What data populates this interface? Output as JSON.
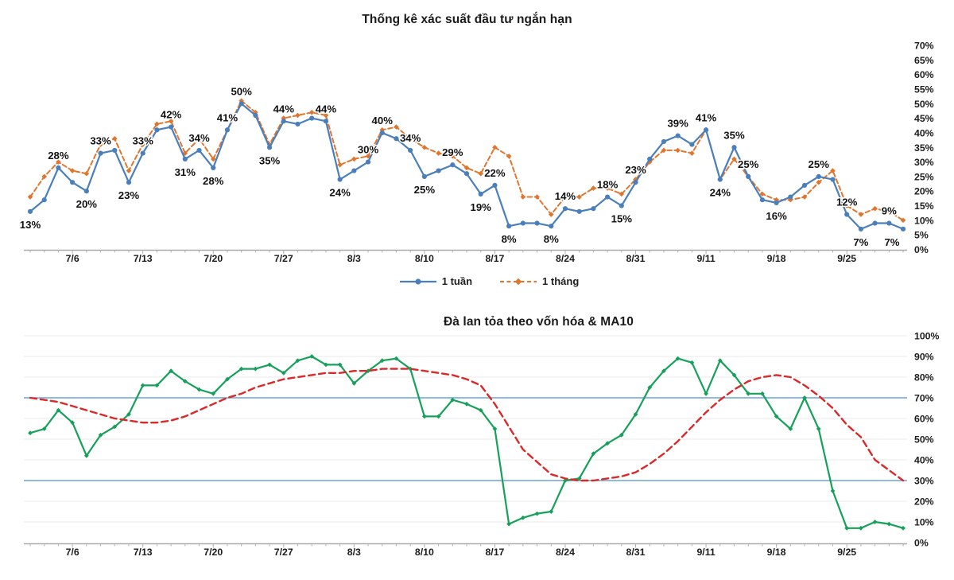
{
  "page_title": "Thống kê xác suất đầu tư ngắn hạn",
  "colors": {
    "week_line": "#4a7fbc",
    "month_line": "#e1752e",
    "breadth_line": "#16a05a",
    "ma10_line": "#d92929",
    "reference_line": "#7fb2d9",
    "grid_line": "#e9e9e9",
    "axis_line": "#a9a9a9",
    "text": "#1c1c1c"
  },
  "chart_data": [
    {
      "type": "line",
      "title": "Thống kê xác suất đầu tư ngắn hạn",
      "ylabel": "",
      "xlabel": "",
      "ylim": [
        0,
        70
      ],
      "y_step": 5,
      "y_tick_labels": [
        "70%",
        "65%",
        "60%",
        "55%",
        "50%",
        "45%",
        "40%",
        "35%",
        "30%",
        "25%",
        "20%",
        "15%",
        "10%",
        "5%",
        "0%"
      ],
      "y_axis_side": "right",
      "grid": false,
      "legend_position": "bottom",
      "x_tick_labels": [
        "7/6",
        "7/13",
        "7/20",
        "7/27",
        "8/3",
        "8/10",
        "8/17",
        "8/24",
        "8/31",
        "9/11",
        "9/18",
        "9/25"
      ],
      "x_tick_indices": [
        3,
        8,
        13,
        18,
        23,
        28,
        33,
        38,
        43,
        48,
        53,
        58
      ],
      "n_points": 63,
      "series": [
        {
          "name": "1 tuần",
          "color": "#4a7fbc",
          "line_style": "solid",
          "marker": "circle",
          "values": [
            13,
            17,
            28,
            23,
            20,
            33,
            34,
            23,
            33,
            41,
            42,
            31,
            34,
            28,
            41,
            50,
            46,
            35,
            44,
            43,
            45,
            44,
            24,
            27,
            30,
            40,
            38,
            34,
            25,
            27,
            29,
            26,
            19,
            22,
            8,
            9,
            9,
            8,
            14,
            13,
            14,
            18,
            15,
            23,
            31,
            37,
            39,
            36,
            41,
            24,
            35,
            25,
            17,
            16,
            18,
            22,
            25,
            24,
            12,
            7,
            9,
            9,
            7
          ]
        },
        {
          "name": "1 tháng",
          "color": "#e1752e",
          "line_style": "dashed",
          "marker": "diamond",
          "values": [
            18,
            25,
            30,
            27,
            26,
            36,
            38,
            27,
            36,
            43,
            44,
            33,
            38,
            31,
            41,
            51,
            47,
            36,
            45,
            46,
            47,
            46,
            29,
            31,
            32,
            41,
            42,
            38,
            35,
            33,
            32,
            28,
            26,
            35,
            32,
            18,
            18,
            12,
            18,
            18,
            21,
            21,
            19,
            24,
            30,
            34,
            34,
            33,
            41,
            24,
            31,
            25,
            19,
            17,
            17,
            18,
            23,
            27,
            15,
            12,
            14,
            13,
            10
          ]
        }
      ],
      "data_labels": {
        "series": "1 tuần",
        "color": "#111111",
        "items": [
          {
            "index": 0,
            "text": "13%",
            "pos": "below"
          },
          {
            "index": 2,
            "text": "28%",
            "pos": "above"
          },
          {
            "index": 4,
            "text": "20%",
            "pos": "below"
          },
          {
            "index": 5,
            "text": "33%",
            "pos": "above"
          },
          {
            "index": 7,
            "text": "23%",
            "pos": "below"
          },
          {
            "index": 8,
            "text": "33%",
            "pos": "above"
          },
          {
            "index": 10,
            "text": "42%",
            "pos": "above"
          },
          {
            "index": 11,
            "text": "31%",
            "pos": "below"
          },
          {
            "index": 12,
            "text": "34%",
            "pos": "above"
          },
          {
            "index": 13,
            "text": "28%",
            "pos": "below"
          },
          {
            "index": 14,
            "text": "41%",
            "pos": "above"
          },
          {
            "index": 15,
            "text": "50%",
            "pos": "above"
          },
          {
            "index": 17,
            "text": "35%",
            "pos": "below"
          },
          {
            "index": 18,
            "text": "44%",
            "pos": "above"
          },
          {
            "index": 21,
            "text": "44%",
            "pos": "above"
          },
          {
            "index": 22,
            "text": "24%",
            "pos": "below"
          },
          {
            "index": 24,
            "text": "30%",
            "pos": "above"
          },
          {
            "index": 25,
            "text": "40%",
            "pos": "above"
          },
          {
            "index": 27,
            "text": "34%",
            "pos": "above"
          },
          {
            "index": 28,
            "text": "25%",
            "pos": "below"
          },
          {
            "index": 30,
            "text": "29%",
            "pos": "above"
          },
          {
            "index": 32,
            "text": "19%",
            "pos": "below"
          },
          {
            "index": 33,
            "text": "22%",
            "pos": "above"
          },
          {
            "index": 34,
            "text": "8%",
            "pos": "below"
          },
          {
            "index": 37,
            "text": "8%",
            "pos": "below"
          },
          {
            "index": 38,
            "text": "14%",
            "pos": "above"
          },
          {
            "index": 41,
            "text": "18%",
            "pos": "above"
          },
          {
            "index": 42,
            "text": "15%",
            "pos": "below"
          },
          {
            "index": 43,
            "text": "23%",
            "pos": "above"
          },
          {
            "index": 46,
            "text": "39%",
            "pos": "above"
          },
          {
            "index": 48,
            "text": "41%",
            "pos": "above"
          },
          {
            "index": 49,
            "text": "24%",
            "pos": "below"
          },
          {
            "index": 50,
            "text": "35%",
            "pos": "above"
          },
          {
            "index": 51,
            "text": "25%",
            "pos": "above"
          },
          {
            "index": 53,
            "text": "16%",
            "pos": "below"
          },
          {
            "index": 56,
            "text": "25%",
            "pos": "above"
          },
          {
            "index": 58,
            "text": "12%",
            "pos": "above"
          },
          {
            "index": 59,
            "text": "7%",
            "pos": "below"
          },
          {
            "index": 61,
            "text": "9%",
            "pos": "above"
          },
          {
            "index": 62,
            "text": "7%",
            "pos": "below"
          }
        ]
      }
    },
    {
      "type": "line",
      "title": "Đà lan tỏa theo vốn hóa & MA10",
      "ylabel": "",
      "xlabel": "",
      "ylim": [
        0,
        100
      ],
      "y_step": 10,
      "y_tick_labels": [
        "100%",
        "90%",
        "80%",
        "70%",
        "60%",
        "50%",
        "40%",
        "30%",
        "20%",
        "10%",
        "0%"
      ],
      "y_axis_side": "right",
      "grid": true,
      "legend_position": "none",
      "reference_lines": [
        {
          "value": 70,
          "color": "#7fb2d9"
        },
        {
          "value": 30,
          "color": "#7fb2d9"
        }
      ],
      "x_tick_labels": [
        "7/6",
        "7/13",
        "7/20",
        "7/27",
        "8/3",
        "8/10",
        "8/17",
        "8/24",
        "8/31",
        "9/11",
        "9/18",
        "9/25"
      ],
      "x_tick_indices": [
        3,
        8,
        13,
        18,
        23,
        28,
        33,
        38,
        43,
        48,
        53,
        58
      ],
      "n_points": 63,
      "series": [
        {
          "name": "Đà lan tỏa theo vốn hóa",
          "color": "#16a05a",
          "line_style": "solid",
          "marker": "diamond",
          "values": [
            53,
            55,
            64,
            58,
            42,
            52,
            56,
            62,
            76,
            76,
            83,
            78,
            74,
            72,
            79,
            84,
            84,
            86,
            82,
            88,
            90,
            86,
            86,
            77,
            83,
            88,
            89,
            84,
            61,
            61,
            69,
            67,
            64,
            55,
            9,
            12,
            14,
            15,
            30,
            31,
            43,
            48,
            52,
            62,
            75,
            83,
            89,
            87,
            72,
            88,
            81,
            72,
            72,
            61,
            55,
            70,
            55,
            25,
            7,
            7,
            10,
            9,
            7
          ]
        },
        {
          "name": "MA10",
          "color": "#d92929",
          "line_style": "dashed",
          "marker": "none",
          "values": [
            70,
            69,
            68,
            66,
            64,
            62,
            60,
            59,
            58,
            58,
            59,
            61,
            64,
            67,
            70,
            72,
            75,
            77,
            79,
            80,
            81,
            82,
            82,
            83,
            83,
            84,
            84,
            84,
            83,
            82,
            81,
            79,
            76,
            67,
            56,
            45,
            39,
            33,
            31,
            30,
            30,
            31,
            32,
            34,
            38,
            43,
            49,
            56,
            63,
            69,
            74,
            78,
            80,
            81,
            80,
            76,
            71,
            65,
            57,
            51,
            40,
            35,
            30
          ]
        }
      ],
      "data_labels": {
        "series": "",
        "color": "#111111",
        "items": []
      }
    }
  ]
}
